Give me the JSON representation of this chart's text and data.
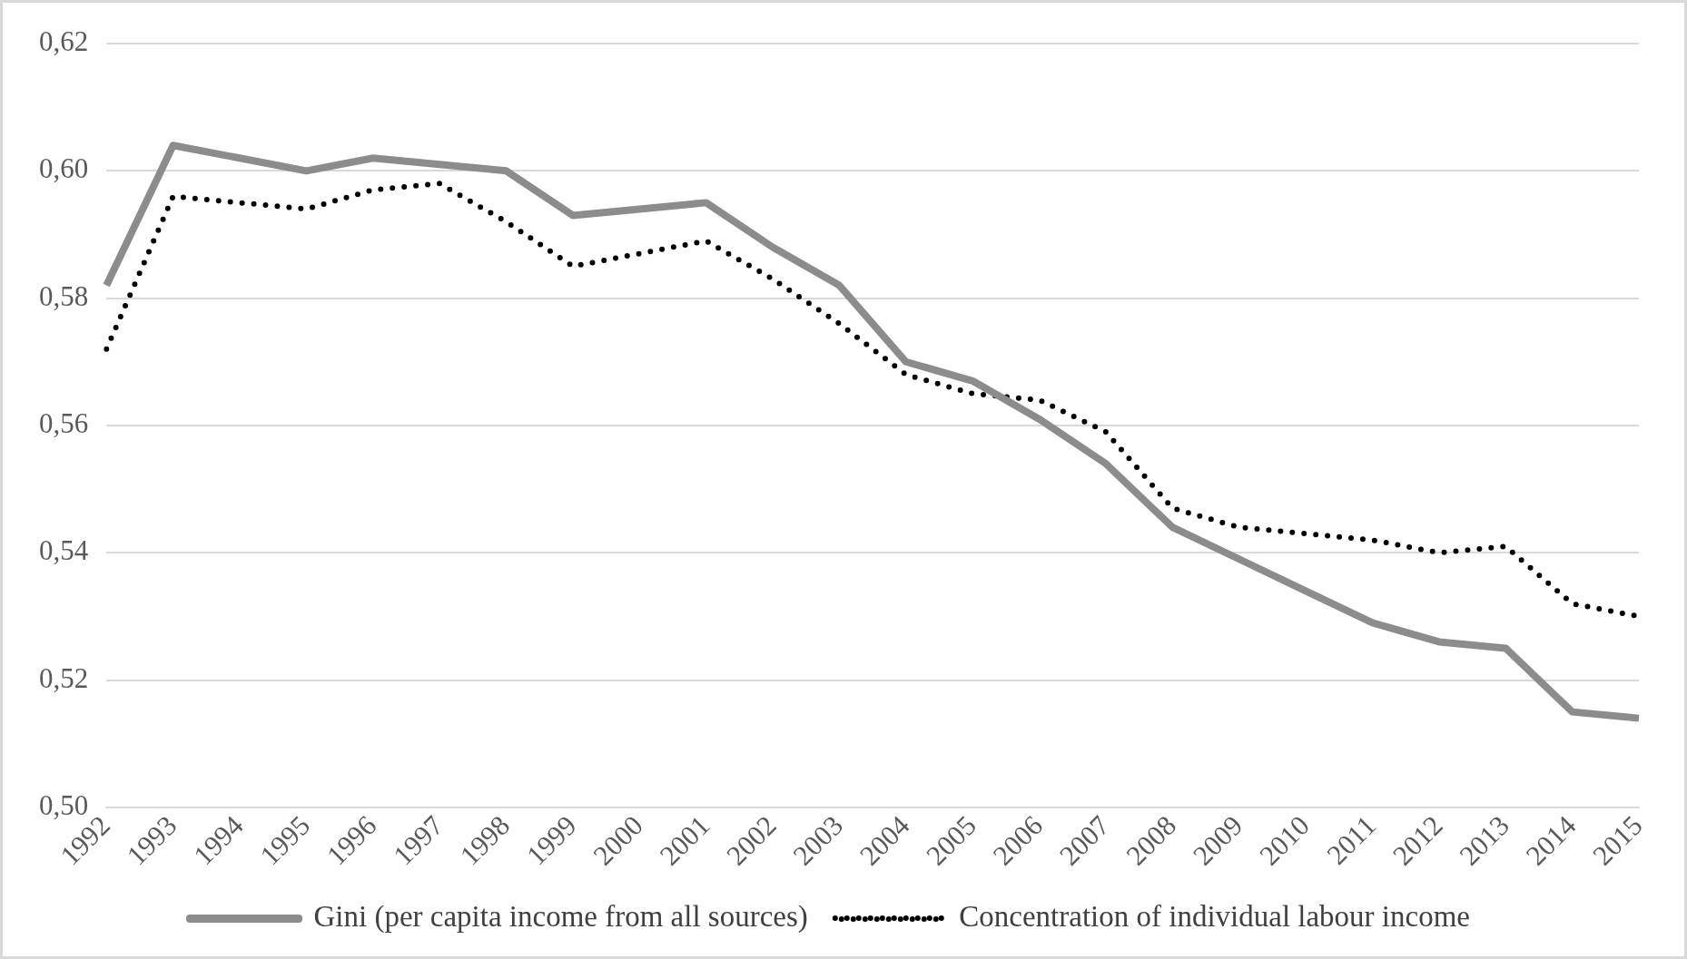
{
  "chart_data": {
    "type": "line",
    "categories": [
      "1992",
      "1993",
      "1994",
      "1995",
      "1996",
      "1997",
      "1998",
      "1999",
      "2000",
      "2001",
      "2002",
      "2003",
      "2004",
      "2005",
      "2006",
      "2007",
      "2008",
      "2009",
      "2010",
      "2011",
      "2012",
      "2013",
      "2014",
      "2015"
    ],
    "series": [
      {
        "name": "Gini (per capita income from all sources)",
        "color": "#8c8c8c",
        "line_style": "solid",
        "values": [
          0.582,
          0.604,
          0.602,
          0.6,
          0.602,
          0.601,
          0.6,
          0.593,
          0.594,
          0.595,
          0.588,
          0.582,
          0.57,
          0.567,
          0.561,
          0.554,
          0.544,
          0.539,
          0.534,
          0.529,
          0.526,
          0.525,
          0.515,
          0.514
        ]
      },
      {
        "name": "Concentration of individual labour income",
        "color": "#000000",
        "line_style": "dotted",
        "values": [
          0.572,
          0.596,
          0.595,
          0.594,
          0.597,
          0.598,
          0.592,
          0.585,
          0.587,
          0.589,
          0.583,
          0.576,
          0.568,
          0.565,
          0.564,
          0.559,
          0.547,
          0.544,
          0.543,
          0.542,
          0.54,
          0.541,
          0.532,
          0.53
        ]
      }
    ],
    "ylim": [
      0.5,
      0.62
    ],
    "yticks": [
      {
        "value": 0.5,
        "label": "0,50"
      },
      {
        "value": 0.52,
        "label": "0,52"
      },
      {
        "value": 0.54,
        "label": "0,54"
      },
      {
        "value": 0.56,
        "label": "0,56"
      },
      {
        "value": 0.58,
        "label": "0,58"
      },
      {
        "value": 0.6,
        "label": "0,60"
      },
      {
        "value": 0.62,
        "label": "0,62"
      }
    ],
    "grid": "y",
    "legend": "bottom",
    "marker": "none"
  }
}
